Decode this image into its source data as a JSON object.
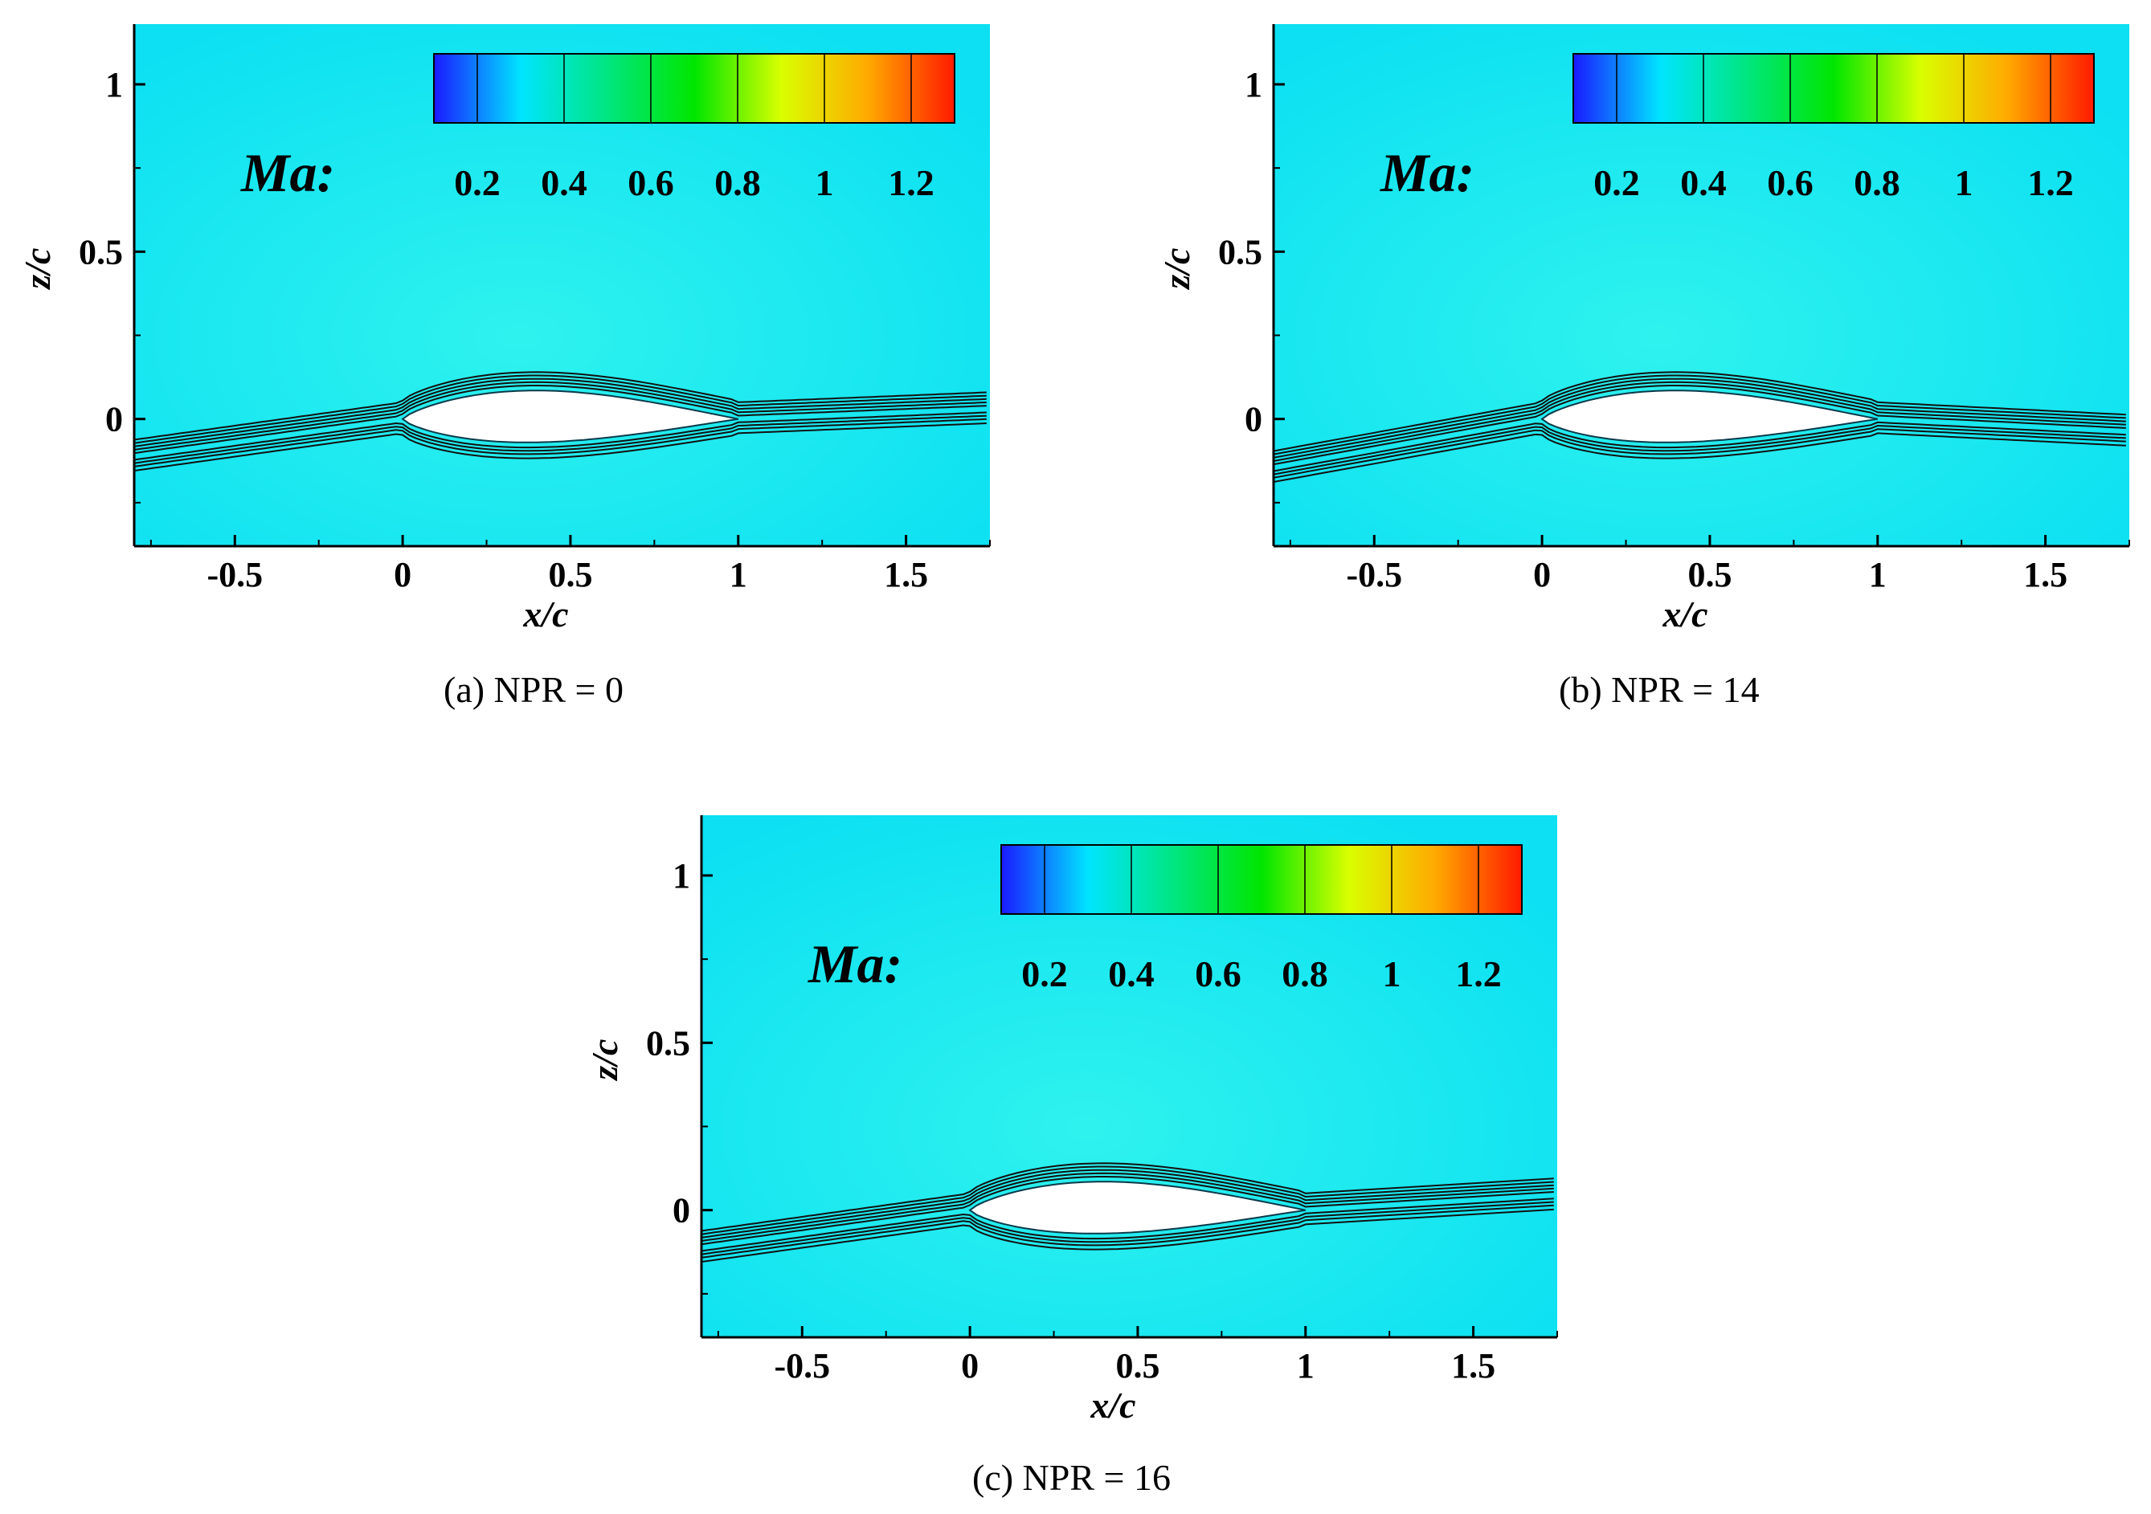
{
  "chart_data": [
    {
      "type": "contour",
      "panel": "a",
      "caption": "(a) NPR = 0",
      "variable": "Ma",
      "legend_title": "Ma:",
      "legend_ticks": [
        "0.2",
        "0.4",
        "0.6",
        "0.8",
        "1",
        "1.2"
      ],
      "legend_tick_values": [
        0.2,
        0.4,
        0.6,
        0.8,
        1.0,
        1.2
      ],
      "colorbar_range": [
        0.1,
        1.3
      ],
      "xlabel": "x/c",
      "ylabel": "z/c",
      "xlim": [
        -0.8,
        1.75
      ],
      "ylim": [
        -0.38,
        1.18
      ],
      "xticks": [
        "-0.5",
        "0",
        "0.5",
        "1",
        "1.5"
      ],
      "xtick_values": [
        -0.5,
        0,
        0.5,
        1,
        1.5
      ],
      "yticks": [
        "0",
        "0.5",
        "1"
      ],
      "ytick_values": [
        0,
        0.5,
        1
      ],
      "freestream_ma": 0.3,
      "trailing_flow_angle": 0.04
    },
    {
      "type": "contour",
      "panel": "b",
      "caption": "(b) NPR = 14",
      "variable": "Ma",
      "legend_title": "Ma:",
      "legend_ticks": [
        "0.2",
        "0.4",
        "0.6",
        "0.8",
        "1",
        "1.2"
      ],
      "legend_tick_values": [
        0.2,
        0.4,
        0.6,
        0.8,
        1.0,
        1.2
      ],
      "colorbar_range": [
        0.1,
        1.3
      ],
      "xlabel": "x/c",
      "ylabel": "z/c",
      "xlim": [
        -0.8,
        1.75
      ],
      "ylim": [
        -0.38,
        1.18
      ],
      "xticks": [
        "-0.5",
        "0",
        "0.5",
        "1",
        "1.5"
      ],
      "xtick_values": [
        -0.5,
        0,
        0.5,
        1,
        1.5
      ],
      "yticks": [
        "0",
        "0.5",
        "1"
      ],
      "ytick_values": [
        0,
        0.5,
        1
      ],
      "freestream_ma": 0.3,
      "trailing_flow_angle": -0.05
    },
    {
      "type": "contour",
      "panel": "c",
      "caption": "(c) NPR = 16",
      "variable": "Ma",
      "legend_title": "Ma:",
      "legend_ticks": [
        "0.2",
        "0.4",
        "0.6",
        "0.8",
        "1",
        "1.2"
      ],
      "legend_tick_values": [
        0.2,
        0.4,
        0.6,
        0.8,
        1.0,
        1.2
      ],
      "colorbar_range": [
        0.1,
        1.3
      ],
      "xlabel": "x/c",
      "ylabel": "z/c",
      "xlim": [
        -0.8,
        1.75
      ],
      "ylim": [
        -0.38,
        1.18
      ],
      "xticks": [
        "-0.5",
        "0",
        "0.5",
        "1",
        "1.5"
      ],
      "xtick_values": [
        -0.5,
        0,
        0.5,
        1,
        1.5
      ],
      "yticks": [
        "0",
        "0.5",
        "1"
      ],
      "ytick_values": [
        0,
        0.5,
        1
      ],
      "freestream_ma": 0.3,
      "trailing_flow_angle": 0.06
    }
  ],
  "colors": {
    "field_background": "#0ce0f2",
    "streamline": "#111111",
    "airfoil_fill": "#ffffff",
    "colormap": [
      "#1a1aff",
      "#00e5ff",
      "#00e680",
      "#00e600",
      "#d9ff00",
      "#ffaa00",
      "#ff1a00"
    ]
  }
}
